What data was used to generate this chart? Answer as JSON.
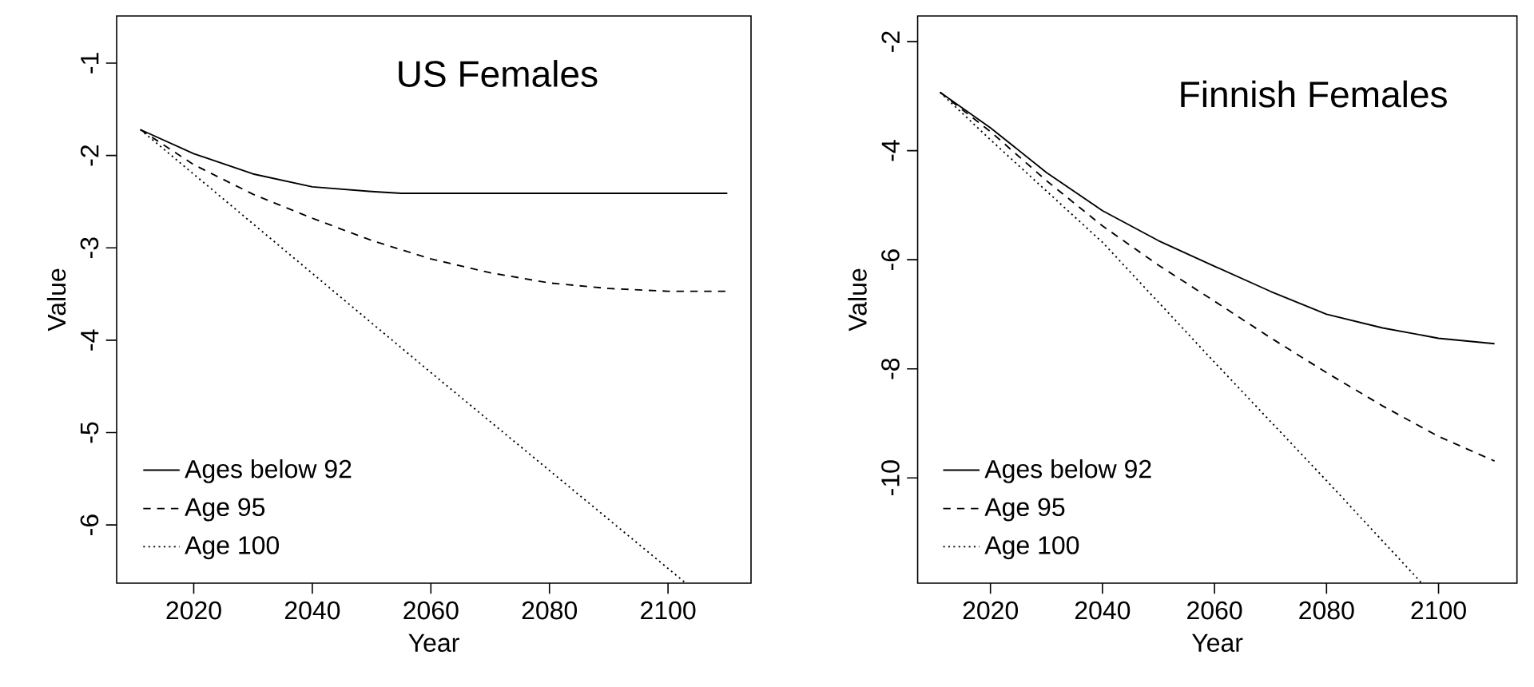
{
  "chart_data": [
    {
      "type": "line",
      "title": "US Females",
      "xlabel": "Year",
      "ylabel": "Value",
      "xlim": [
        2007,
        2114
      ],
      "ylim": [
        -6.63,
        -0.49
      ],
      "xticks": [
        2020,
        2040,
        2060,
        2080,
        2100
      ],
      "yticks": [
        -6,
        -5,
        -4,
        -3,
        -2,
        -1
      ],
      "legend": "bottom left",
      "grid": false,
      "series": [
        {
          "name": "Ages below 92",
          "color": "#000000",
          "line_style": "solid",
          "x": [
            2011,
            2020,
            2030,
            2040,
            2050,
            2055,
            2070,
            2090,
            2110
          ],
          "values": [
            -1.72,
            -1.98,
            -2.2,
            -2.34,
            -2.39,
            -2.41,
            -2.41,
            -2.41,
            -2.41
          ]
        },
        {
          "name": "Age 95",
          "color": "#000000",
          "line_style": "dashed",
          "x": [
            2011,
            2020,
            2030,
            2040,
            2050,
            2060,
            2070,
            2080,
            2090,
            2100,
            2110
          ],
          "values": [
            -1.72,
            -2.1,
            -2.42,
            -2.68,
            -2.92,
            -3.12,
            -3.27,
            -3.38,
            -3.44,
            -3.47,
            -3.47
          ]
        },
        {
          "name": "Age 100",
          "color": "#000000",
          "line_style": "dotted",
          "x": [
            2011,
            2060,
            2103
          ],
          "values": [
            -1.72,
            -4.35,
            -6.63
          ]
        }
      ]
    },
    {
      "type": "line",
      "title": "Finnish Females",
      "xlabel": "Year",
      "ylabel": "Value",
      "xlim": [
        2007,
        2114
      ],
      "ylim": [
        -11.93,
        -1.53
      ],
      "xticks": [
        2020,
        2040,
        2060,
        2080,
        2100
      ],
      "yticks": [
        -10,
        -8,
        -6,
        -4,
        -2
      ],
      "legend": "bottom left",
      "grid": false,
      "series": [
        {
          "name": "Ages below 92",
          "color": "#000000",
          "line_style": "solid",
          "x": [
            2011,
            2020,
            2030,
            2040,
            2050,
            2060,
            2070,
            2080,
            2090,
            2100,
            2110
          ],
          "values": [
            -2.93,
            -3.58,
            -4.4,
            -5.1,
            -5.65,
            -6.12,
            -6.58,
            -7.0,
            -7.25,
            -7.44,
            -7.54
          ]
        },
        {
          "name": "Age 95",
          "color": "#000000",
          "line_style": "dashed",
          "x": [
            2011,
            2020,
            2030,
            2040,
            2050,
            2060,
            2070,
            2080,
            2090,
            2100,
            2110
          ],
          "values": [
            -2.93,
            -3.65,
            -4.55,
            -5.38,
            -6.1,
            -6.76,
            -7.43,
            -8.07,
            -8.68,
            -9.24,
            -9.69
          ]
        },
        {
          "name": "Age 100",
          "color": "#000000",
          "line_style": "dotted",
          "x": [
            2011,
            2020,
            2040,
            2060,
            2080,
            2097
          ],
          "values": [
            -2.93,
            -3.8,
            -5.68,
            -7.88,
            -10.05,
            -11.93
          ]
        }
      ]
    }
  ]
}
